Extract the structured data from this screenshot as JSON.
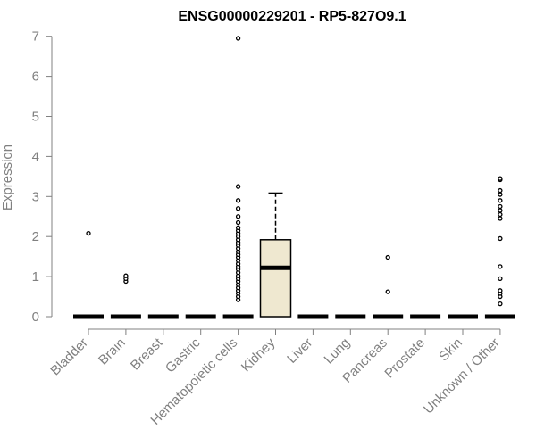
{
  "chart_data": {
    "type": "boxplot",
    "title": "ENSG00000229201 - RP5-827O9.1",
    "ylabel": "Expression",
    "xlabel": "",
    "ylim": [
      0,
      7
    ],
    "yticks": [
      0,
      1,
      2,
      3,
      4,
      5,
      6,
      7
    ],
    "grid": false,
    "legend": "none",
    "colors": {
      "box_fill": "#efe8d0",
      "median": "#000000",
      "outline": "#000000",
      "axis": "#808080"
    },
    "categories": [
      "Bladder",
      "Brain",
      "Breast",
      "Gastric",
      "Hematopoietic cells",
      "Kidney",
      "Liver",
      "Lung",
      "Pancreas",
      "Prostate",
      "Skin",
      "Unknown / Other"
    ],
    "boxes": [
      {
        "category": "Bladder",
        "q1": 0,
        "median": 0,
        "q3": 0,
        "whisker_low": 0,
        "whisker_high": 0,
        "outliers": [
          2.08
        ]
      },
      {
        "category": "Brain",
        "q1": 0,
        "median": 0,
        "q3": 0,
        "whisker_low": 0,
        "whisker_high": 0,
        "outliers": [
          0.88,
          0.95,
          1.02
        ]
      },
      {
        "category": "Breast",
        "q1": 0,
        "median": 0,
        "q3": 0,
        "whisker_low": 0,
        "whisker_high": 0,
        "outliers": []
      },
      {
        "category": "Gastric",
        "q1": 0,
        "median": 0,
        "q3": 0,
        "whisker_low": 0,
        "whisker_high": 0,
        "outliers": []
      },
      {
        "category": "Hematopoietic cells",
        "q1": 0,
        "median": 0,
        "q3": 0,
        "whisker_low": 0,
        "whisker_high": 0,
        "outliers": [
          0.42,
          0.5,
          0.58,
          0.65,
          0.72,
          0.8,
          0.88,
          0.95,
          1.02,
          1.1,
          1.18,
          1.25,
          1.32,
          1.4,
          1.48,
          1.55,
          1.62,
          1.7,
          1.78,
          1.85,
          1.92,
          2.0,
          2.08,
          2.15,
          2.22,
          2.35,
          2.5,
          2.7,
          2.9,
          3.25,
          6.95
        ]
      },
      {
        "category": "Kidney",
        "q1": 0,
        "median": 1.22,
        "q3": 1.92,
        "whisker_low": 0,
        "whisker_high": 3.08,
        "outliers": []
      },
      {
        "category": "Liver",
        "q1": 0,
        "median": 0,
        "q3": 0,
        "whisker_low": 0,
        "whisker_high": 0,
        "outliers": []
      },
      {
        "category": "Lung",
        "q1": 0,
        "median": 0,
        "q3": 0,
        "whisker_low": 0,
        "whisker_high": 0,
        "outliers": []
      },
      {
        "category": "Pancreas",
        "q1": 0,
        "median": 0,
        "q3": 0,
        "whisker_low": 0,
        "whisker_high": 0,
        "outliers": [
          0.62,
          1.48
        ]
      },
      {
        "category": "Prostate",
        "q1": 0,
        "median": 0,
        "q3": 0,
        "whisker_low": 0,
        "whisker_high": 0,
        "outliers": []
      },
      {
        "category": "Skin",
        "q1": 0,
        "median": 0,
        "q3": 0,
        "whisker_low": 0,
        "whisker_high": 0,
        "outliers": []
      },
      {
        "category": "Unknown / Other",
        "q1": 0,
        "median": 0,
        "q3": 0,
        "whisker_low": 0,
        "whisker_high": 0,
        "outliers": [
          0.32,
          0.5,
          0.58,
          0.65,
          0.95,
          1.25,
          1.95,
          2.45,
          2.55,
          2.65,
          2.75,
          2.9,
          3.05,
          3.15,
          3.42,
          3.45
        ]
      }
    ]
  }
}
